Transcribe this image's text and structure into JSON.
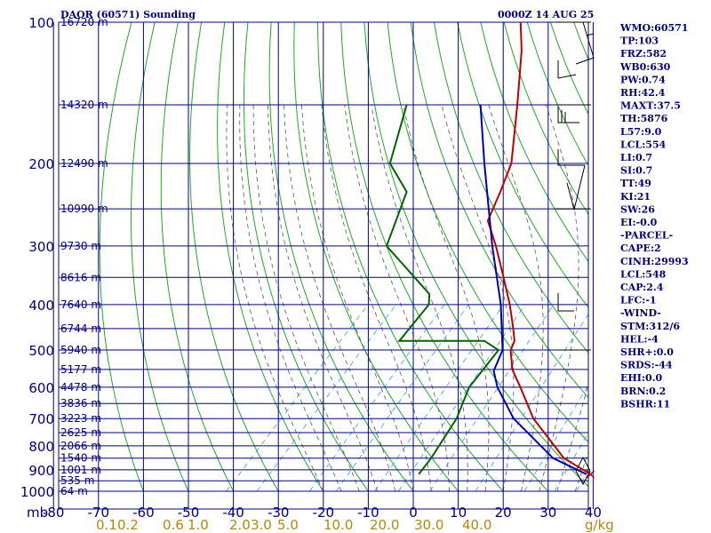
{
  "header": {
    "title": "DAOR (60571) Sounding",
    "datetime": "0000Z 14 AUG 25"
  },
  "indices": [
    "WMO:60571",
    "TP:103",
    "FRZ:582",
    "WB0:630",
    "PW:0.74",
    "RH:42.4",
    "MAXT:37.5",
    "TH:5876",
    "L57:9.0",
    "LCL:554",
    "LI:0.7",
    "SI:0.7",
    "TT:49",
    "KI:21",
    "SW:26",
    "EI:-0.0",
    "-PARCEL-",
    "CAPE:2",
    "CINH:29993",
    "LCL:548",
    "CAP:2.4",
    "LFC:-1",
    "-WIND-",
    "STM:312/6",
    "HEL:-4",
    "SHR+:0.0",
    "SRDS:-44",
    "EHI:0.0",
    "BRN:0.2",
    "BSHR:11"
  ],
  "chart_data": {
    "type": "line",
    "title": "DAOR (60571) Sounding",
    "subtitle": "0000Z 14 AUG 25",
    "y_unit_label": "mb",
    "mixing_unit_label": "g/kg",
    "pressure_axis": {
      "scale": "log",
      "ylim": [
        1000,
        100
      ],
      "ticks": [
        100,
        200,
        300,
        400,
        500,
        600,
        700,
        800,
        900,
        1000
      ],
      "tick_labels": [
        "100",
        "200",
        "300",
        "400",
        "500",
        "600",
        "700",
        "800",
        "900",
        "1000"
      ]
    },
    "temperature_axis": {
      "ticks": [
        -80,
        -70,
        -60,
        -50,
        -40,
        -30,
        -20,
        -10,
        0,
        10,
        20,
        30,
        40
      ],
      "tick_labels": [
        "-80",
        "-70",
        "-60",
        "-50",
        "-40",
        "-30",
        "-20",
        "-10",
        "0",
        "10",
        "20",
        "30",
        "40"
      ]
    },
    "height_labels": [
      {
        "p": 100,
        "label": "16720 m"
      },
      {
        "p": 150,
        "label": "14320 m"
      },
      {
        "p": 200,
        "label": "12490 m"
      },
      {
        "p": 250,
        "label": "10990 m"
      },
      {
        "p": 300,
        "label": "9730 m"
      },
      {
        "p": 350,
        "label": "8616 m"
      },
      {
        "p": 400,
        "label": "7640 m"
      },
      {
        "p": 450,
        "label": "6744 m"
      },
      {
        "p": 500,
        "label": "5940 m"
      },
      {
        "p": 550,
        "label": "5177 m"
      },
      {
        "p": 600,
        "label": "4478 m"
      },
      {
        "p": 650,
        "label": "3836 m"
      },
      {
        "p": 700,
        "label": "3223 m"
      },
      {
        "p": 750,
        "label": "2625 m"
      },
      {
        "p": 800,
        "label": "2066 m"
      },
      {
        "p": 850,
        "label": "1540 m"
      },
      {
        "p": 900,
        "label": "1001 m"
      },
      {
        "p": 950,
        "label": "535 m"
      },
      {
        "p": 1000,
        "label": "64 m"
      }
    ],
    "mixing_ratio_labels": [
      "0.1",
      "0.2",
      "0.6",
      "1.0",
      "2.0",
      "3.0",
      "5.0",
      "10.0",
      "20.0",
      "30.0",
      "40.0"
    ],
    "mixing_ratio_values": [
      0.1,
      0.2,
      0.6,
      1.0,
      2.0,
      3.0,
      5.0,
      10.0,
      20.0,
      30.0,
      40.0
    ],
    "grid": true,
    "series": [
      {
        "key": "temperature",
        "color": "#c00000",
        "points": [
          {
            "p": 920,
            "t": 35.8
          },
          {
            "p": 850,
            "t": 26.4
          },
          {
            "p": 700,
            "t": 11.2
          },
          {
            "p": 600,
            "t": 1.6
          },
          {
            "p": 550,
            "t": -4.0
          },
          {
            "p": 500,
            "t": -8.5
          },
          {
            "p": 478,
            "t": -9.6
          },
          {
            "p": 450,
            "t": -12.5
          },
          {
            "p": 400,
            "t": -18.4
          },
          {
            "p": 350,
            "t": -25.6
          },
          {
            "p": 300,
            "t": -34.0
          },
          {
            "p": 265,
            "t": -41.2
          },
          {
            "p": 230,
            "t": -44.6
          },
          {
            "p": 200,
            "t": -48.2
          },
          {
            "p": 150,
            "t": -59.4
          },
          {
            "p": 115,
            "t": -70.0
          },
          {
            "p": 100,
            "t": -76.3
          }
        ]
      },
      {
        "key": "dewpoint",
        "color": "#006400",
        "points": [
          {
            "p": 920,
            "t": -2.4
          },
          {
            "p": 850,
            "t": -3.1
          },
          {
            "p": 700,
            "t": -5.9
          },
          {
            "p": 600,
            "t": -9.8
          },
          {
            "p": 500,
            "t": -11.2
          },
          {
            "p": 478,
            "t": -16.3
          },
          {
            "p": 478,
            "t": -35.2
          },
          {
            "p": 400,
            "t": -36.4
          },
          {
            "p": 380,
            "t": -38.5
          },
          {
            "p": 300,
            "t": -58.3
          },
          {
            "p": 230,
            "t": -65.4
          },
          {
            "p": 200,
            "t": -75.2
          },
          {
            "p": 150,
            "t": -84.0
          }
        ]
      },
      {
        "key": "parcel",
        "color": "#0000b0",
        "points": [
          {
            "p": 920,
            "t": 34.9
          },
          {
            "p": 850,
            "t": 24.0
          },
          {
            "p": 700,
            "t": 6.8
          },
          {
            "p": 600,
            "t": -3.5
          },
          {
            "p": 554,
            "t": -7.8
          },
          {
            "p": 500,
            "t": -10.3
          },
          {
            "p": 400,
            "t": -20.4
          },
          {
            "p": 300,
            "t": -34.8
          },
          {
            "p": 200,
            "t": -54.2
          },
          {
            "p": 150,
            "t": -67.6
          }
        ]
      }
    ],
    "wind_profile_pressures": [
      100,
      150,
      250,
      500
    ]
  }
}
